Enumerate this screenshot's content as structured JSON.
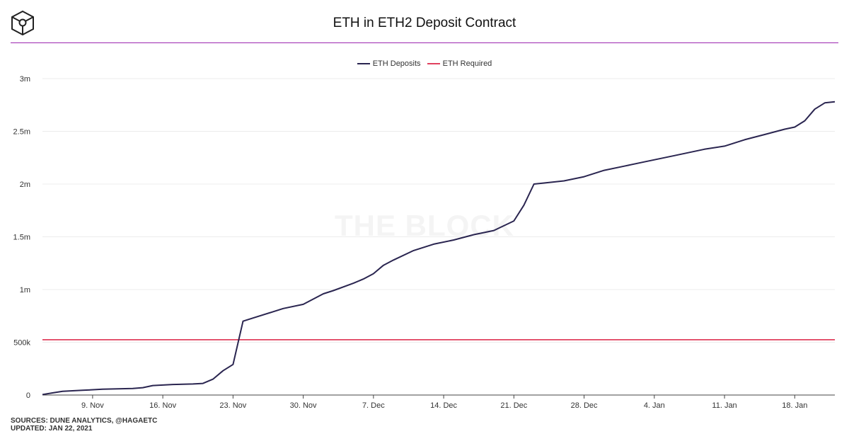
{
  "header": {
    "title": "ETH in ETH2 Deposit Contract",
    "logo_icon": "the-block-cube-icon"
  },
  "watermark": "THE BLOCK",
  "footer": {
    "sources": "SOURCES: DUNE ANALYTICS, @HAGAETC",
    "updated": "UPDATED: JAN 22, 2021"
  },
  "colors": {
    "deposits": "#2a2550",
    "required": "#e0405e",
    "accent_rule": "#9c27b0"
  },
  "chart_data": {
    "type": "line",
    "title": "ETH in ETH2 Deposit Contract",
    "legend_position": "top-center",
    "grid": true,
    "x_ticks": [
      "9. Nov",
      "16. Nov",
      "23. Nov",
      "30. Nov",
      "7. Dec",
      "14. Dec",
      "21. Dec",
      "28. Dec",
      "4. Jan",
      "11. Jan",
      "18. Jan"
    ],
    "y_ticks": [
      "0",
      "500k",
      "1m",
      "1.5m",
      "2m",
      "2.5m",
      "3m"
    ],
    "xlim": [
      "2020-11-04",
      "2021-01-22"
    ],
    "ylim": [
      0,
      3000000
    ],
    "series": [
      {
        "name": "ETH Deposits",
        "x": [
          "2020-11-04",
          "2020-11-05",
          "2020-11-06",
          "2020-11-08",
          "2020-11-10",
          "2020-11-13",
          "2020-11-14",
          "2020-11-15",
          "2020-11-17",
          "2020-11-19",
          "2020-11-20",
          "2020-11-21",
          "2020-11-22",
          "2020-11-23",
          "2020-11-24",
          "2020-11-25",
          "2020-11-27",
          "2020-11-28",
          "2020-11-30",
          "2020-12-02",
          "2020-12-03",
          "2020-12-05",
          "2020-12-06",
          "2020-12-07",
          "2020-12-08",
          "2020-12-09",
          "2020-12-11",
          "2020-12-13",
          "2020-12-15",
          "2020-12-17",
          "2020-12-19",
          "2020-12-21",
          "2020-12-22",
          "2020-12-23",
          "2020-12-26",
          "2020-12-28",
          "2020-12-30",
          "2021-01-01",
          "2021-01-03",
          "2021-01-06",
          "2021-01-09",
          "2021-01-11",
          "2021-01-13",
          "2021-01-15",
          "2021-01-17",
          "2021-01-18",
          "2021-01-19",
          "2021-01-20",
          "2021-01-21",
          "2021-01-22"
        ],
        "values": [
          5000,
          20000,
          35000,
          45000,
          55000,
          62000,
          70000,
          90000,
          100000,
          105000,
          110000,
          150000,
          230000,
          290000,
          700000,
          730000,
          790000,
          820000,
          860000,
          960000,
          990000,
          1060000,
          1100000,
          1150000,
          1230000,
          1280000,
          1370000,
          1430000,
          1470000,
          1520000,
          1560000,
          1650000,
          1800000,
          2000000,
          2030000,
          2070000,
          2130000,
          2170000,
          2210000,
          2270000,
          2330000,
          2360000,
          2420000,
          2470000,
          2520000,
          2540000,
          2600000,
          2710000,
          2770000,
          2780000
        ]
      },
      {
        "name": "ETH Required",
        "x": [
          "2020-11-04",
          "2021-01-22"
        ],
        "values": [
          524288,
          524288
        ]
      }
    ]
  }
}
